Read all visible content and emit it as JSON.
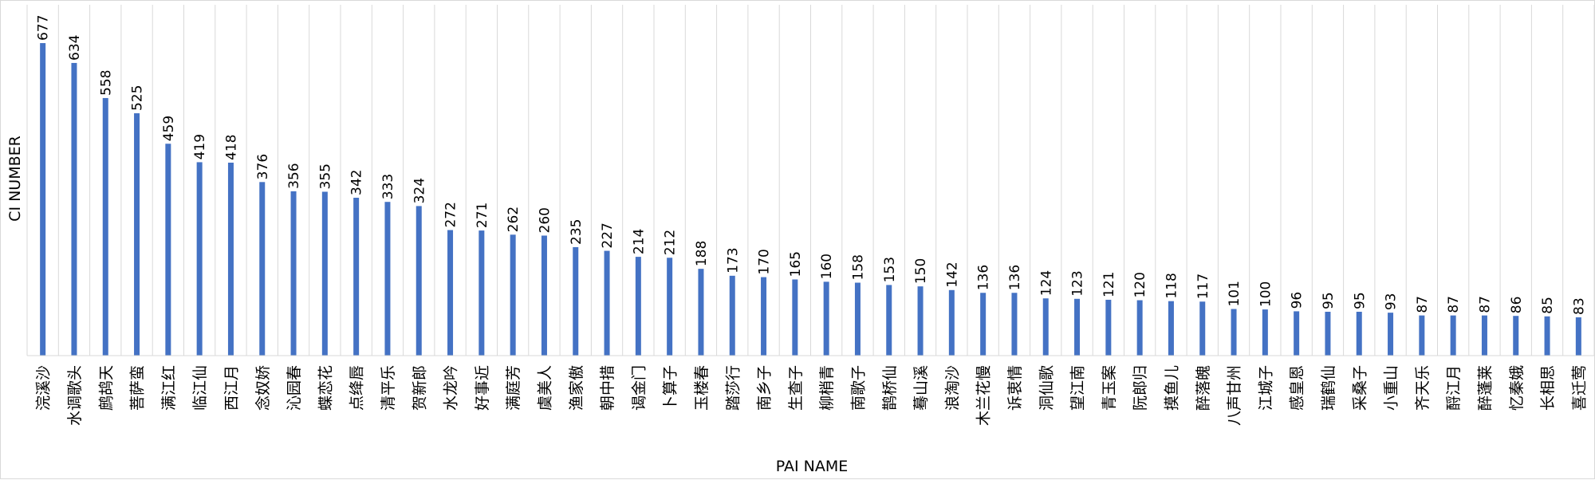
{
  "chart_data": {
    "type": "bar",
    "xlabel": "PAI NAME",
    "ylabel": "CI NUMBER",
    "ylim": [
      0,
      760
    ],
    "grid": "vertical-category-lines",
    "legend": "none",
    "bar_color": "#4472C4",
    "grid_color": "#D9D9D9",
    "categories": [
      "浣溪沙",
      "水调歌头",
      "鹧鸪天",
      "菩萨蛮",
      "满江红",
      "临江仙",
      "西江月",
      "念奴娇",
      "沁园春",
      "蝶恋花",
      "点绛唇",
      "清平乐",
      "贺新郎",
      "水龙吟",
      "好事近",
      "满庭芳",
      "虞美人",
      "渔家傲",
      "朝中措",
      "谒金门",
      "卜算子",
      "玉楼春",
      "踏莎行",
      "南乡子",
      "生查子",
      "柳梢青",
      "南歌子",
      "鹊桥仙",
      "蓦山溪",
      "浪淘沙",
      "木兰花慢",
      "诉衷情",
      "洞仙歌",
      "望江南",
      "青玉案",
      "阮郎归",
      "摸鱼儿",
      "醉落魄",
      "八声甘州",
      "江城子",
      "感皇恩",
      "瑞鹤仙",
      "采桑子",
      "小重山",
      "齐天乐",
      "酹江月",
      "醉蓬莱",
      "忆秦娥",
      "长相思",
      "喜迁莺"
    ],
    "values": [
      677,
      634,
      558,
      525,
      459,
      419,
      418,
      376,
      356,
      355,
      342,
      333,
      324,
      272,
      271,
      262,
      260,
      235,
      227,
      214,
      212,
      188,
      173,
      170,
      165,
      160,
      158,
      153,
      150,
      142,
      136,
      136,
      124,
      123,
      121,
      120,
      118,
      117,
      101,
      100,
      96,
      95,
      95,
      93,
      87,
      87,
      87,
      86,
      85,
      83
    ]
  }
}
